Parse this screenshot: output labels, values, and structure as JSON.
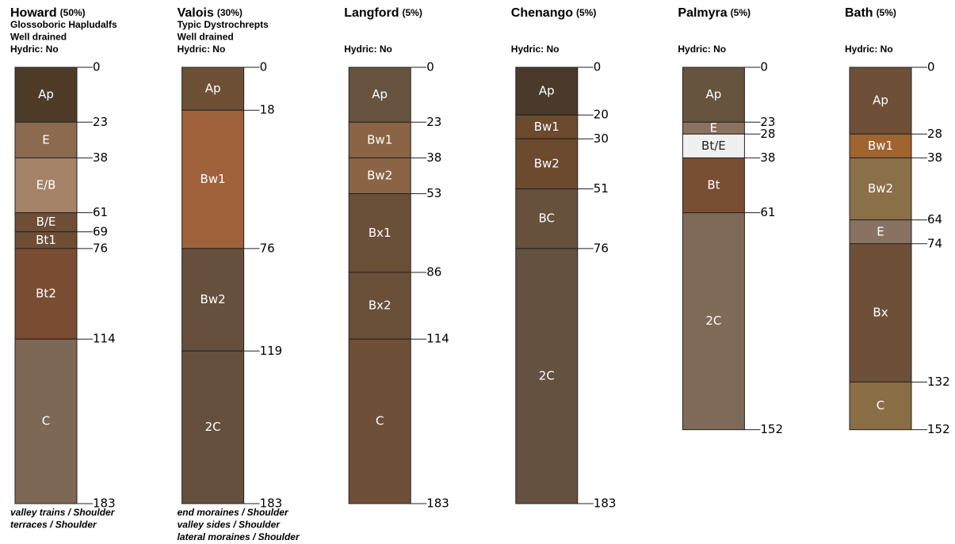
{
  "profiles": [
    {
      "name": "Howard",
      "percent": "(50%)",
      "lines": [
        "Glossoboric Hapludalfs",
        "Well drained",
        "Hydric: No"
      ],
      "depths": [
        0,
        23,
        38,
        61,
        69,
        76,
        114,
        183
      ],
      "horizons": [
        {
          "label": "Ap",
          "color": "#4d3b28"
        },
        {
          "label": "E",
          "color": "#8b6a4f"
        },
        {
          "label": "E/B",
          "color": "#a58368"
        },
        {
          "label": "B/E",
          "color": "#6e4f36"
        },
        {
          "label": "Bt1",
          "color": "#6e4f36"
        },
        {
          "label": "Bt2",
          "color": "#7a4c32"
        },
        {
          "label": "C",
          "color": "#7d6755"
        }
      ],
      "landforms": [
        "valley trains / Shoulder",
        "terraces / Shoulder"
      ]
    },
    {
      "name": "Valois",
      "percent": "(30%)",
      "lines": [
        "Typic Dystrochrepts",
        "Well drained",
        "Hydric: No"
      ],
      "depths": [
        0,
        18,
        76,
        119,
        183
      ],
      "horizons": [
        {
          "label": "Ap",
          "color": "#6e5037"
        },
        {
          "label": "Bw1",
          "color": "#a0623a"
        },
        {
          "label": "Bw2",
          "color": "#66503d"
        },
        {
          "label": "2C",
          "color": "#65503f"
        }
      ],
      "landforms": [
        "end moraines / Shoulder",
        "valley sides / Shoulder",
        "lateral moraines / Shoulder"
      ]
    },
    {
      "name": "Langford",
      "percent": "(5%)",
      "lines": [
        "Hydric: No"
      ],
      "depths": [
        0,
        23,
        38,
        53,
        86,
        114,
        183
      ],
      "horizons": [
        {
          "label": "Ap",
          "color": "#67533f"
        },
        {
          "label": "Bw1",
          "color": "#8a6444"
        },
        {
          "label": "Bw2",
          "color": "#8a6444"
        },
        {
          "label": "Bx1",
          "color": "#6a4f39"
        },
        {
          "label": "Bx2",
          "color": "#6a4f39"
        },
        {
          "label": "C",
          "color": "#6e5038"
        }
      ],
      "landforms": []
    },
    {
      "name": "Chenango",
      "percent": "(5%)",
      "lines": [
        "Hydric: No"
      ],
      "depths": [
        0,
        20,
        30,
        51,
        76,
        183
      ],
      "horizons": [
        {
          "label": "Ap",
          "color": "#4a3a2c"
        },
        {
          "label": "Bw1",
          "color": "#6b4a2e"
        },
        {
          "label": "Bw2",
          "color": "#6b4a2e"
        },
        {
          "label": "BC",
          "color": "#67503c"
        },
        {
          "label": "2C",
          "color": "#65513f"
        }
      ],
      "landforms": []
    },
    {
      "name": "Palmyra",
      "percent": "(5%)",
      "lines": [
        "Hydric: No"
      ],
      "depths": [
        0,
        23,
        28,
        38,
        61,
        152
      ],
      "horizons": [
        {
          "label": "Ap",
          "color": "#66543f"
        },
        {
          "label": "E",
          "color": "#8a7260"
        },
        {
          "label": "Bt/E",
          "color": "#f0f0f0"
        },
        {
          "label": "Bt",
          "color": "#7a4e33"
        },
        {
          "label": "2C",
          "color": "#7f6a58"
        }
      ],
      "landforms": []
    },
    {
      "name": "Bath",
      "percent": "(5%)",
      "lines": [
        "Hydric: No"
      ],
      "depths": [
        0,
        28,
        38,
        64,
        74,
        132,
        152
      ],
      "horizons": [
        {
          "label": "Ap",
          "color": "#6e5038"
        },
        {
          "label": "Bw1",
          "color": "#a0642f"
        },
        {
          "label": "Bw2",
          "color": "#8a7048"
        },
        {
          "label": "E",
          "color": "#8a7262"
        },
        {
          "label": "Bx",
          "color": "#6e5038"
        },
        {
          "label": "C",
          "color": "#8a6e45"
        }
      ],
      "landforms": []
    }
  ]
}
